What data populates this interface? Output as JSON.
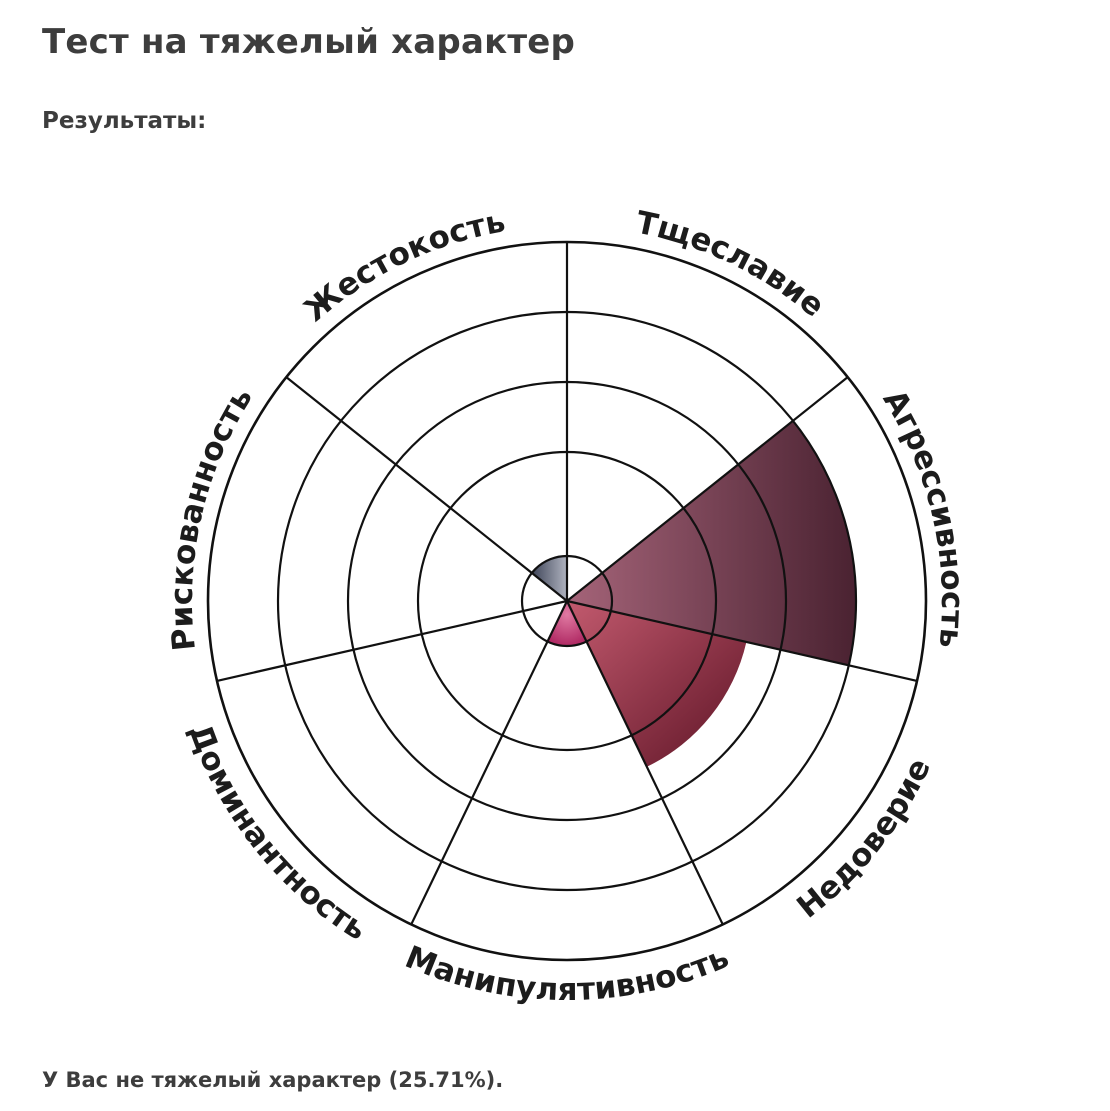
{
  "page": {
    "title": "Тест на тяжелый характер",
    "results_label": "Результаты:",
    "result_text": "У Вас не тяжелый характер (25.71%)."
  },
  "chart_data": {
    "type": "polar-area",
    "title": "",
    "rings": 5,
    "max": 5,
    "categories": [
      "Тщеславие",
      "Агрессивность",
      "Недоверие",
      "Манипулятивность",
      "Доминантность",
      "Рискованность",
      "Жестокость"
    ],
    "values": [
      0,
      4,
      2.5,
      1,
      0,
      0,
      1
    ],
    "colors": [
      "#b84a6a",
      "#5a2a3a",
      "#7a1f35",
      "#c0306a",
      "#888888",
      "#888888",
      "#4a5060"
    ]
  }
}
